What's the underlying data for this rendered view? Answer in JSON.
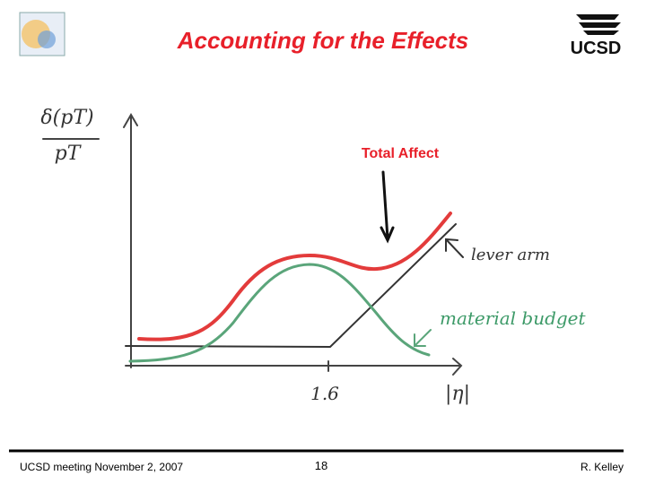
{
  "header": {
    "title": "Accounting for the Effects",
    "logo_text": "UCSD"
  },
  "figure": {
    "annotation": "Total Affect",
    "y_label_top": "δ(pT)",
    "y_label_bottom": "pT",
    "x_label": "|η|",
    "x_tick": "1.6",
    "lever_arm_label": "lever arm",
    "material_label": "material budget"
  },
  "footer": {
    "left": "UCSD meeting November 2, 2007",
    "page": "18",
    "author": "R. Kelley"
  }
}
